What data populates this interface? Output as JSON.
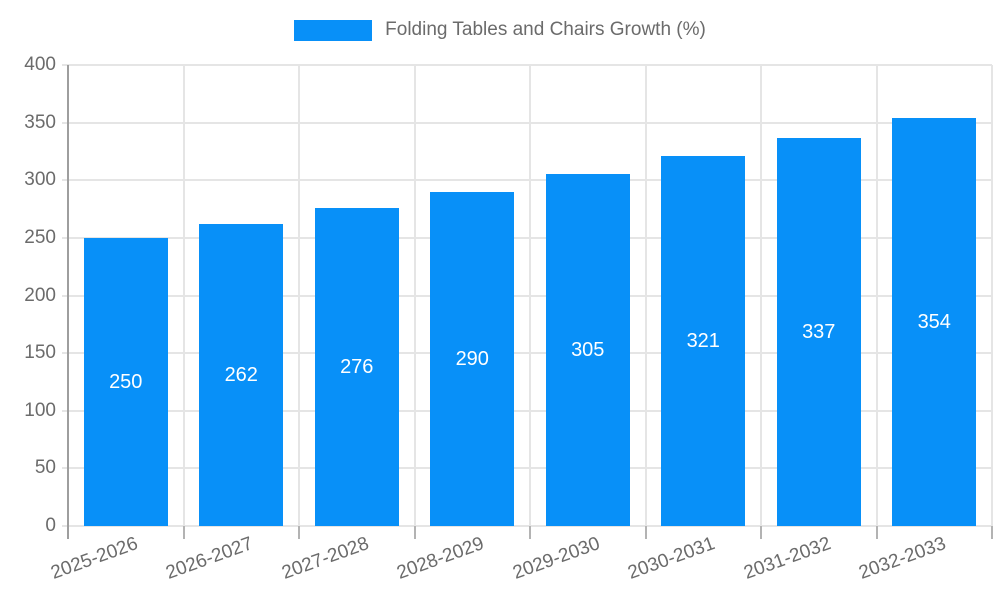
{
  "legend": {
    "label": "Folding Tables and Chairs Growth (%)"
  },
  "colors": {
    "bar": "#0890f8",
    "grid": "#e5e5e5",
    "axis": "#9e9e9e",
    "tick_stub": "#b3b3b3",
    "text": "#6b6b6b",
    "value_label": "#ffffff",
    "background": "#ffffff"
  },
  "chart_data": {
    "type": "bar",
    "title": "Folding Tables and Chairs Growth (%)",
    "categories": [
      "2025-2026",
      "2026-2027",
      "2027-2028",
      "2028-2029",
      "2029-2030",
      "2030-2031",
      "2031-2032",
      "2032-2033"
    ],
    "values": [
      250,
      262,
      276,
      290,
      305,
      321,
      337,
      354
    ],
    "series": [
      {
        "name": "Folding Tables and Chairs Growth (%)",
        "values": [
          250,
          262,
          276,
          290,
          305,
          321,
          337,
          354
        ]
      }
    ],
    "xlabel": "",
    "ylabel": "",
    "ylim": [
      0,
      400
    ],
    "yticks": [
      0,
      50,
      100,
      150,
      200,
      250,
      300,
      350,
      400
    ],
    "grid": true,
    "legend_position": "top",
    "value_labels": "inside-center",
    "x_tick_rotation_deg": -20
  }
}
